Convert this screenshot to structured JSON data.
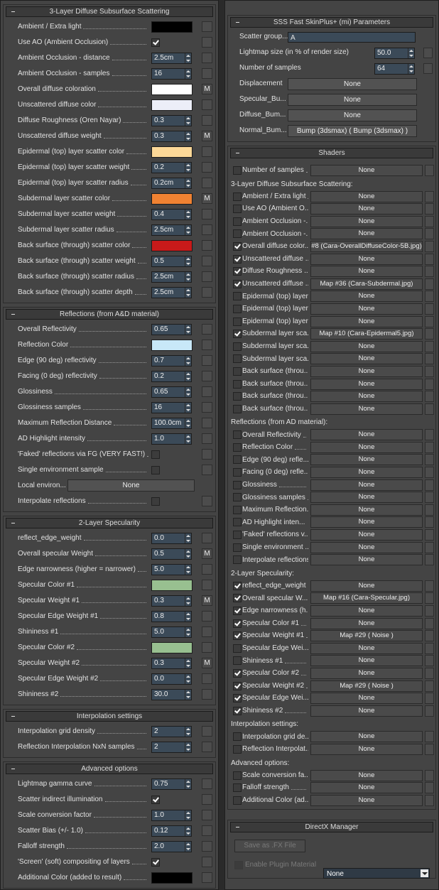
{
  "left": {
    "sections": [
      {
        "title": "3-Layer Diffuse Subsurface Scattering",
        "rows": [
          {
            "label": "Ambient / Extra light",
            "color": "#000000"
          },
          {
            "label": "Use AO (Ambient Occlusion)",
            "checked": true
          },
          {
            "label": "Ambient Occlusion - distance",
            "spinner": "2.5cm"
          },
          {
            "label": "Ambient Occlusion - samples",
            "spinner": "16"
          },
          {
            "label": "Overall diffuse coloration",
            "color": "#ffffff",
            "m": "M"
          },
          {
            "label": "Unscattered diffuse color",
            "color": "#eceef8"
          },
          {
            "label": "Diffuse Roughness (Oren Nayar)",
            "spinner": "0.3"
          },
          {
            "label": "Unscattered diffuse weight",
            "spinner": "0.3",
            "m": "M"
          },
          {
            "label": "Epidermal (top) layer scatter color",
            "color": "#fcd898"
          },
          {
            "label": "Epidermal (top) layer scatter weight",
            "spinner": "0.2"
          },
          {
            "label": "Epidermal (top) layer scatter radius",
            "spinner": "0.2cm"
          },
          {
            "label": "Subdermal layer scatter color",
            "color": "#f08232",
            "m": "M"
          },
          {
            "label": "Subdermal layer scatter weight",
            "spinner": "0.4"
          },
          {
            "label": "Subdermal layer scatter radius",
            "spinner": "2.5cm"
          },
          {
            "label": "Back surface (through) scatter color",
            "color": "#c81a1a"
          },
          {
            "label": "Back surface (through) scatter weight",
            "spinner": "0.5"
          },
          {
            "label": "Back surface (through) scatter radius",
            "spinner": "2.5cm"
          },
          {
            "label": "Back surface (through) scatter depth",
            "spinner": "2.5cm"
          }
        ]
      },
      {
        "title": "Reflections (from A&D material)",
        "rows": [
          {
            "label": "Overall Reflectivity",
            "spinner": "0.65"
          },
          {
            "label": "Reflection Color",
            "color": "#c8e8f8"
          },
          {
            "label": "Edge (90 deg) reflectivity",
            "spinner": "0.7"
          },
          {
            "label": "Facing (0 deg) reflectivity",
            "spinner": "0.2"
          },
          {
            "label": "Glossiness",
            "spinner": "0.65"
          },
          {
            "label": "Glossiness samples",
            "spinner": "16"
          },
          {
            "label": "Maximum Reflection Distance",
            "spinner": "100.0cm"
          },
          {
            "label": "AD Highlight intensity",
            "spinner": "1.0"
          },
          {
            "label": "'Faked' reflections via FG (VERY FAST!)",
            "checked": false
          },
          {
            "label": "Single environment sample",
            "checked": false
          },
          {
            "label": "Local environ...",
            "button": "None"
          },
          {
            "label": "Interpolate reflections",
            "checked": false
          }
        ]
      },
      {
        "title": "2-Layer Specularity",
        "rows": [
          {
            "label": "reflect_edge_weight",
            "spinner": "0.0"
          },
          {
            "label": "Overall specular Weight",
            "spinner": "0.5",
            "m": "M"
          },
          {
            "label": "Edge narrowness (higher = narrower)",
            "spinner": "5.0"
          },
          {
            "label": "Specular Color #1",
            "color": "#98c090"
          },
          {
            "label": "Specular Weight #1",
            "spinner": "0.3",
            "m": "M"
          },
          {
            "label": "Specular Edge Weight #1",
            "spinner": "0.8"
          },
          {
            "label": "Shininess #1",
            "spinner": "5.0"
          },
          {
            "label": "Specular Color #2",
            "color": "#98c090"
          },
          {
            "label": "Specular Weight #2",
            "spinner": "0.3",
            "m": "M"
          },
          {
            "label": "Specular Edge Weight #2",
            "spinner": "0.0"
          },
          {
            "label": "Shininess #2",
            "spinner": "30.0"
          }
        ]
      },
      {
        "title": "Interpolation settings",
        "rows": [
          {
            "label": "Interpolation grid density",
            "spinner": "2"
          },
          {
            "label": "Reflection Interpolation NxN samples",
            "spinner": "2"
          }
        ]
      },
      {
        "title": "Advanced options",
        "rows": [
          {
            "label": "Lightmap gamma curve",
            "spinner": "0.75"
          },
          {
            "label": "Scatter indirect illumination",
            "checked": true
          },
          {
            "label": "Scale conversion factor",
            "spinner": "1.0"
          },
          {
            "label": "Scatter Bias (+/- 1.0)",
            "spinner": "0.12"
          },
          {
            "label": "Falloff strength",
            "spinner": "2.0"
          },
          {
            "label": "'Screen' (soft) compositing of layers",
            "checked": true
          },
          {
            "label": "Additional Color (added to result)",
            "color": "#000000"
          }
        ]
      }
    ]
  },
  "right": {
    "parameters": {
      "title": "SSS Fast SkinPlus+ (mi) Parameters",
      "rows": [
        {
          "label": "Scatter group...",
          "text": "A"
        },
        {
          "label": "Lightmap size (in % of render size)",
          "spinner": "50.0"
        },
        {
          "label": "Number of samples",
          "spinner": "64"
        },
        {
          "label": "Displacement",
          "button": "None"
        },
        {
          "label": "Specular_Bu...",
          "button": "None"
        },
        {
          "label": "Diffuse_Bum...",
          "button": "None"
        },
        {
          "label": "Normal_Bum...",
          "button": "Bump (3dsmax)  ( Bump (3dsmax) )"
        }
      ]
    },
    "shaders": {
      "title": "Shaders",
      "rows": [
        {
          "label": "Number of samples",
          "checked": false,
          "button": "None"
        },
        {
          "group": "3-Layer Diffuse Subsurface Scattering:"
        },
        {
          "label": "Ambient / Extra light",
          "checked": false,
          "button": "None"
        },
        {
          "label": "Use AO (Ambient O...",
          "checked": false,
          "button": "None"
        },
        {
          "label": "Ambient Occlusion -...",
          "checked": false,
          "button": "None"
        },
        {
          "label": "Ambient Occlusion -...",
          "checked": false,
          "button": "None"
        },
        {
          "label": "Overall diffuse color...",
          "checked": true,
          "button": "#8 (Cara-OverallDiffuseColor-5B.jpg)"
        },
        {
          "label": "Unscattered diffuse ...",
          "checked": true,
          "button": "None"
        },
        {
          "label": "Diffuse Roughness ...",
          "checked": true,
          "button": "None"
        },
        {
          "label": "Unscattered diffuse ...",
          "checked": true,
          "button": "Map #36 (Cara-Subdermal.jpg)"
        },
        {
          "label": "Epidermal (top) layer...",
          "checked": false,
          "button": "None"
        },
        {
          "label": "Epidermal (top) layer...",
          "checked": false,
          "button": "None"
        },
        {
          "label": "Epidermal (top) layer...",
          "checked": false,
          "button": "None"
        },
        {
          "label": "Subdermal layer sca...",
          "checked": true,
          "button": "Map #10 (Cara-Epidermal5.jpg)"
        },
        {
          "label": "Subdermal layer sca...",
          "checked": false,
          "button": "None"
        },
        {
          "label": "Subdermal layer sca...",
          "checked": false,
          "button": "None"
        },
        {
          "label": "Back surface (throu...",
          "checked": false,
          "button": "None"
        },
        {
          "label": "Back surface (throu...",
          "checked": false,
          "button": "None"
        },
        {
          "label": "Back surface (throu...",
          "checked": false,
          "button": "None"
        },
        {
          "label": "Back surface (throu...",
          "checked": false,
          "button": "None"
        },
        {
          "group": "Reflections (from AD material):"
        },
        {
          "label": "Overall Reflectivity",
          "checked": false,
          "button": "None"
        },
        {
          "label": "Reflection Color",
          "checked": false,
          "button": "None"
        },
        {
          "label": "Edge (90 deg) refle...",
          "checked": false,
          "button": "None"
        },
        {
          "label": "Facing (0 deg) refle...",
          "checked": false,
          "button": "None"
        },
        {
          "label": "Glossiness",
          "checked": false,
          "button": "None"
        },
        {
          "label": "Glossiness samples",
          "checked": false,
          "button": "None"
        },
        {
          "label": "Maximum Reflection...",
          "checked": false,
          "button": "None"
        },
        {
          "label": "AD Highlight inten...",
          "checked": false,
          "button": "None"
        },
        {
          "label": "'Faked' reflections v...",
          "checked": false,
          "button": "None"
        },
        {
          "label": "Single environment ...",
          "checked": false,
          "button": "None"
        },
        {
          "label": "Interpolate reflections",
          "checked": false,
          "button": "None"
        },
        {
          "group": "2-Layer Specularity:"
        },
        {
          "label": "reflect_edge_weight",
          "checked": true,
          "button": "None"
        },
        {
          "label": "Overall specular W...",
          "checked": true,
          "button": "Map #16 (Cara-Specular.jpg)"
        },
        {
          "label": "Edge narrowness (h...",
          "checked": true,
          "button": "None"
        },
        {
          "label": "Specular Color #1",
          "checked": true,
          "button": "None"
        },
        {
          "label": "Specular Weight #1",
          "checked": true,
          "button": "Map #29  ( Noise )"
        },
        {
          "label": "Specular Edge Wei...",
          "checked": false,
          "button": "None"
        },
        {
          "label": "Shininess #1",
          "checked": false,
          "button": "None"
        },
        {
          "label": "Specular Color #2",
          "checked": true,
          "button": "None"
        },
        {
          "label": "Specular Weight #2",
          "checked": true,
          "button": "Map #29  ( Noise )"
        },
        {
          "label": "Specular Edge Wei...",
          "checked": true,
          "button": "None"
        },
        {
          "label": "Shininess #2",
          "checked": true,
          "button": "None"
        },
        {
          "group": "Interpolation settings:"
        },
        {
          "label": "Interpolation grid de...",
          "checked": false,
          "button": "None"
        },
        {
          "label": "Reflection Interpolat...",
          "checked": false,
          "button": "None"
        },
        {
          "group": "Advanced options:"
        },
        {
          "label": "Scale conversion fa...",
          "checked": false,
          "button": "None"
        },
        {
          "label": "Falloff strength",
          "checked": false,
          "button": "None"
        },
        {
          "label": "Additional Color (ad...",
          "checked": false,
          "button": "None"
        }
      ]
    },
    "directx": {
      "title": "DirectX Manager",
      "save_button": "Save as .FX File",
      "enable_label": "Enable Plugin Material",
      "enable_checked": false,
      "dropdown": "None"
    }
  }
}
